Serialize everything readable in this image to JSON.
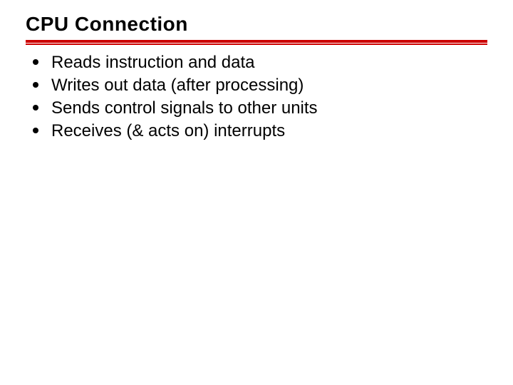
{
  "slide": {
    "title": "CPU Connection",
    "title_fontsize": 28,
    "title_color": "#000000",
    "rule_color": "#cc0000",
    "background_color": "#ffffff",
    "bullet_fontsize": 24,
    "bullet_color": "#000000",
    "bullet_marker_color": "#000000",
    "bullets": [
      "Reads instruction and data",
      "Writes out data (after processing)",
      "Sends control signals to other units",
      "Receives (& acts on) interrupts"
    ]
  }
}
